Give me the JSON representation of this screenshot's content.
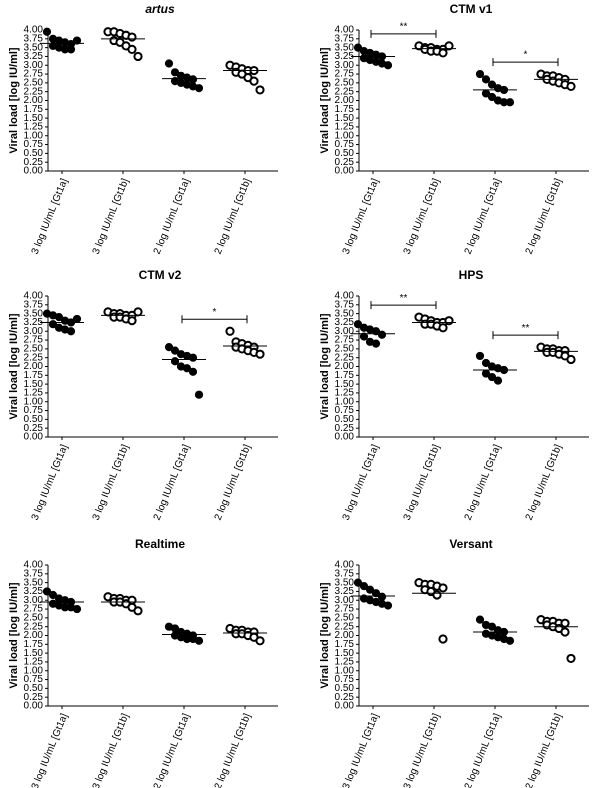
{
  "chart_data": [
    {
      "type": "dot",
      "title": "artus",
      "title_italic": true,
      "ylabel": "Viral load [log IU/ml]",
      "color": "#000000",
      "categories": [
        "3 log IU/mL [Gt1a]",
        "3 log IU/mL [Gt1b]",
        "2 log IU/mL [Gt1a]",
        "2 log IU/mL [Gt1b]"
      ],
      "groups": [
        {
          "marker": "filled",
          "values": [
            3.95,
            3.75,
            3.7,
            3.65,
            3.6,
            3.55,
            3.5,
            3.45,
            3.45,
            3.7
          ],
          "mean": 3.62
        },
        {
          "marker": "open",
          "values": [
            3.95,
            3.95,
            3.9,
            3.85,
            3.8,
            3.7,
            3.65,
            3.55,
            3.45,
            3.25
          ],
          "mean": 3.75
        },
        {
          "marker": "filled",
          "values": [
            3.05,
            2.8,
            2.7,
            2.65,
            2.6,
            2.55,
            2.5,
            2.45,
            2.4,
            2.35
          ],
          "mean": 2.62
        },
        {
          "marker": "open",
          "values": [
            3.0,
            2.95,
            2.9,
            2.85,
            2.85,
            2.8,
            2.75,
            2.65,
            2.55,
            2.3
          ],
          "mean": 2.85
        }
      ],
      "significance": [],
      "ylim": [
        0,
        4
      ],
      "yticks": [
        {
          "value": 0,
          "label": "0.00"
        },
        {
          "value": 0.25,
          "label": "0.25"
        },
        {
          "value": 0.5,
          "label": "0.50"
        },
        {
          "value": 0.75,
          "label": "0.75"
        },
        {
          "value": 1,
          "label": "1.00"
        },
        {
          "value": 1.25,
          "label": "1.25"
        },
        {
          "value": 1.5,
          "label": "1.50"
        },
        {
          "value": 1.75,
          "label": "1.75"
        },
        {
          "value": 2,
          "label": "2.00"
        },
        {
          "value": 2.25,
          "label": "2.25"
        },
        {
          "value": 2.5,
          "label": "2.50"
        },
        {
          "value": 2.75,
          "label": "2.75"
        },
        {
          "value": 3,
          "label": "3.00"
        },
        {
          "value": 3.25,
          "label": "3.25"
        },
        {
          "value": 3.5,
          "label": "3.50"
        },
        {
          "value": 3.75,
          "label": "3.75"
        },
        {
          "value": 4,
          "label": "4.00"
        }
      ]
    },
    {
      "type": "dot",
      "title": "CTM v1",
      "title_italic": false,
      "ylabel": "Viral load [log IU/ml]",
      "color": "#000000",
      "categories": [
        "3 log IU/mL [Gt1a]",
        "3 log IU/mL [Gt1b]",
        "2 log IU/mL [Gt1a]",
        "2 log IU/mL [Gt1b]"
      ],
      "groups": [
        {
          "marker": "filled",
          "values": [
            3.5,
            3.4,
            3.35,
            3.3,
            3.25,
            3.2,
            3.15,
            3.1,
            3.05,
            3.0
          ],
          "mean": 3.25
        },
        {
          "marker": "open",
          "values": [
            3.55,
            3.5,
            3.5,
            3.45,
            3.45,
            3.45,
            3.4,
            3.4,
            3.35,
            3.55
          ],
          "mean": 3.47
        },
        {
          "marker": "filled",
          "values": [
            2.75,
            2.6,
            2.45,
            2.35,
            2.3,
            2.2,
            2.1,
            2.0,
            1.95,
            1.95
          ],
          "mean": 2.3
        },
        {
          "marker": "open",
          "values": [
            2.75,
            2.7,
            2.7,
            2.65,
            2.6,
            2.6,
            2.55,
            2.5,
            2.45,
            2.4
          ],
          "mean": 2.6
        }
      ],
      "significance": [
        {
          "pair": [
            0,
            1
          ],
          "label": "**"
        },
        {
          "pair": [
            2,
            3
          ],
          "label": "*"
        }
      ],
      "ylim": [
        0,
        4
      ],
      "yticks": [
        {
          "value": 0,
          "label": "0.00"
        },
        {
          "value": 0.25,
          "label": "0.25"
        },
        {
          "value": 0.5,
          "label": "0.50"
        },
        {
          "value": 0.75,
          "label": "0.75"
        },
        {
          "value": 1,
          "label": "1.00"
        },
        {
          "value": 1.25,
          "label": "1.25"
        },
        {
          "value": 1.5,
          "label": "1.50"
        },
        {
          "value": 1.75,
          "label": "1.75"
        },
        {
          "value": 2,
          "label": "2.00"
        },
        {
          "value": 2.25,
          "label": "2.25"
        },
        {
          "value": 2.5,
          "label": "2.50"
        },
        {
          "value": 2.75,
          "label": "2.75"
        },
        {
          "value": 3,
          "label": "3.00"
        },
        {
          "value": 3.25,
          "label": "3.25"
        },
        {
          "value": 3.5,
          "label": "3.50"
        },
        {
          "value": 3.75,
          "label": "3.75"
        },
        {
          "value": 4,
          "label": "4.00"
        }
      ]
    },
    {
      "type": "dot",
      "title": "CTM v2",
      "title_italic": false,
      "ylabel": "Viral load [log IU/ml]",
      "color": "#000000",
      "categories": [
        "3 log IU/mL [Gt1a]",
        "3 log IU/mL [Gt1b]",
        "2 log IU/mL [Gt1a]",
        "2 log IU/mL [Gt1b]"
      ],
      "groups": [
        {
          "marker": "filled",
          "values": [
            3.5,
            3.45,
            3.4,
            3.3,
            3.25,
            3.2,
            3.1,
            3.05,
            3.0,
            3.35
          ],
          "mean": 3.25
        },
        {
          "marker": "open",
          "values": [
            3.55,
            3.5,
            3.5,
            3.45,
            3.45,
            3.4,
            3.4,
            3.35,
            3.3,
            3.55
          ],
          "mean": 3.45
        },
        {
          "marker": "filled",
          "values": [
            2.55,
            2.45,
            2.35,
            2.3,
            2.25,
            2.15,
            2.0,
            1.95,
            1.85,
            1.2
          ],
          "mean": 2.2
        },
        {
          "marker": "open",
          "values": [
            3.0,
            2.7,
            2.65,
            2.6,
            2.55,
            2.55,
            2.5,
            2.45,
            2.4,
            2.35
          ],
          "mean": 2.58
        }
      ],
      "significance": [
        {
          "pair": [
            2,
            3
          ],
          "label": "*"
        }
      ],
      "ylim": [
        0,
        4
      ],
      "yticks": [
        {
          "value": 0,
          "label": "0.00"
        },
        {
          "value": 0.25,
          "label": "0.25"
        },
        {
          "value": 0.5,
          "label": "0.50"
        },
        {
          "value": 0.75,
          "label": "0.75"
        },
        {
          "value": 1,
          "label": "1.00"
        },
        {
          "value": 1.25,
          "label": "1.25"
        },
        {
          "value": 1.5,
          "label": "1.50"
        },
        {
          "value": 1.75,
          "label": "1.75"
        },
        {
          "value": 2,
          "label": "2.00"
        },
        {
          "value": 2.25,
          "label": "2.25"
        },
        {
          "value": 2.5,
          "label": "2.50"
        },
        {
          "value": 2.75,
          "label": "2.75"
        },
        {
          "value": 3,
          "label": "3.00"
        },
        {
          "value": 3.25,
          "label": "3.25"
        },
        {
          "value": 3.5,
          "label": "3.50"
        },
        {
          "value": 3.75,
          "label": "3.75"
        },
        {
          "value": 4,
          "label": "4.00"
        }
      ]
    },
    {
      "type": "dot",
      "title": "HPS",
      "title_italic": false,
      "ylabel": "Viral load [log IU/ml]",
      "color": "#000000",
      "categories": [
        "3 log IU/mL [Gt1a]",
        "3 log IU/mL [Gt1b]",
        "2 log IU/mL [Gt1a]",
        "2 log IU/mL [Gt1b]"
      ],
      "groups": [
        {
          "marker": "filled",
          "values": [
            3.2,
            3.1,
            3.05,
            3.0,
            2.9,
            2.85,
            2.7,
            2.65
          ],
          "mean": 2.93
        },
        {
          "marker": "open",
          "values": [
            3.4,
            3.35,
            3.3,
            3.25,
            3.25,
            3.2,
            3.2,
            3.15,
            3.1,
            3.3
          ],
          "mean": 3.25
        },
        {
          "marker": "filled",
          "values": [
            2.3,
            2.1,
            2.0,
            1.95,
            1.9,
            1.8,
            1.7,
            1.6
          ],
          "mean": 1.9
        },
        {
          "marker": "open",
          "values": [
            2.55,
            2.5,
            2.5,
            2.45,
            2.45,
            2.4,
            2.4,
            2.35,
            2.3,
            2.2
          ],
          "mean": 2.43
        }
      ],
      "significance": [
        {
          "pair": [
            0,
            1
          ],
          "label": "**"
        },
        {
          "pair": [
            2,
            3
          ],
          "label": "**"
        }
      ],
      "ylim": [
        0,
        4
      ],
      "yticks": [
        {
          "value": 0,
          "label": "0.00"
        },
        {
          "value": 0.25,
          "label": "0.25"
        },
        {
          "value": 0.5,
          "label": "0.50"
        },
        {
          "value": 0.75,
          "label": "0.75"
        },
        {
          "value": 1,
          "label": "1.00"
        },
        {
          "value": 1.25,
          "label": "1.25"
        },
        {
          "value": 1.5,
          "label": "1.50"
        },
        {
          "value": 1.75,
          "label": "1.75"
        },
        {
          "value": 2,
          "label": "2.00"
        },
        {
          "value": 2.25,
          "label": "2.25"
        },
        {
          "value": 2.5,
          "label": "2.50"
        },
        {
          "value": 2.75,
          "label": "2.75"
        },
        {
          "value": 3,
          "label": "3.00"
        },
        {
          "value": 3.25,
          "label": "3.25"
        },
        {
          "value": 3.5,
          "label": "3.50"
        },
        {
          "value": 3.75,
          "label": "3.75"
        },
        {
          "value": 4,
          "label": "4.00"
        }
      ]
    },
    {
      "type": "dot",
      "title": "Realtime",
      "title_italic": false,
      "ylabel": "Viral load [log IU/ml]",
      "color": "#000000",
      "categories": [
        "3 log IU/mL [Gt1a]",
        "3 log IU/mL [Gt1b]",
        "2 log IU/mL [Gt1a]",
        "2 log IU/mL [Gt1b]"
      ],
      "groups": [
        {
          "marker": "filled",
          "values": [
            3.25,
            3.15,
            3.05,
            3.0,
            2.95,
            2.9,
            2.85,
            2.8,
            2.8,
            2.75
          ],
          "mean": 2.95
        },
        {
          "marker": "open",
          "values": [
            3.1,
            3.05,
            3.05,
            3.0,
            3.0,
            2.95,
            2.95,
            2.9,
            2.8,
            2.7
          ],
          "mean": 2.95
        },
        {
          "marker": "filled",
          "values": [
            2.25,
            2.2,
            2.1,
            2.05,
            2.0,
            2.0,
            1.95,
            1.9,
            1.9,
            1.85
          ],
          "mean": 2.03
        },
        {
          "marker": "open",
          "values": [
            2.2,
            2.15,
            2.15,
            2.1,
            2.1,
            2.05,
            2.05,
            2.0,
            1.95,
            1.85
          ],
          "mean": 2.07
        }
      ],
      "significance": [],
      "ylim": [
        0,
        4
      ],
      "yticks": [
        {
          "value": 0,
          "label": "0.00"
        },
        {
          "value": 0.25,
          "label": "0.25"
        },
        {
          "value": 0.5,
          "label": "0.50"
        },
        {
          "value": 0.75,
          "label": "0.75"
        },
        {
          "value": 1,
          "label": "1.00"
        },
        {
          "value": 1.25,
          "label": "1.25"
        },
        {
          "value": 1.5,
          "label": "1.50"
        },
        {
          "value": 1.75,
          "label": "1.75"
        },
        {
          "value": 2,
          "label": "2.00"
        },
        {
          "value": 2.25,
          "label": "2.25"
        },
        {
          "value": 2.5,
          "label": "2.50"
        },
        {
          "value": 2.75,
          "label": "2.75"
        },
        {
          "value": 3,
          "label": "3.00"
        },
        {
          "value": 3.25,
          "label": "3.25"
        },
        {
          "value": 3.5,
          "label": "3.50"
        },
        {
          "value": 3.75,
          "label": "3.75"
        },
        {
          "value": 4,
          "label": "4.00"
        }
      ]
    },
    {
      "type": "dot",
      "title": "Versant",
      "title_italic": false,
      "ylabel": "Viral load [log IU/ml]",
      "color": "#000000",
      "categories": [
        "3 log IU/mL [Gt1a]",
        "3 log IU/mL [Gt1b]",
        "2 log IU/mL [Gt1a]",
        "2 log IU/mL [Gt1b]"
      ],
      "groups": [
        {
          "marker": "filled",
          "values": [
            3.5,
            3.4,
            3.3,
            3.2,
            3.1,
            3.05,
            3.0,
            2.95,
            2.9,
            2.85
          ],
          "mean": 3.12
        },
        {
          "marker": "open",
          "values": [
            3.5,
            3.45,
            3.45,
            3.4,
            3.35,
            3.3,
            3.25,
            3.15,
            1.9
          ],
          "mean": 3.2
        },
        {
          "marker": "filled",
          "values": [
            2.45,
            2.3,
            2.25,
            2.15,
            2.1,
            2.05,
            2.0,
            1.95,
            1.9,
            1.85
          ],
          "mean": 2.1
        },
        {
          "marker": "open",
          "values": [
            2.45,
            2.4,
            2.4,
            2.35,
            2.35,
            2.3,
            2.25,
            2.2,
            2.1,
            1.35
          ],
          "mean": 2.25
        }
      ],
      "significance": [],
      "ylim": [
        0,
        4
      ],
      "yticks": [
        {
          "value": 0,
          "label": "0.00"
        },
        {
          "value": 0.25,
          "label": "0.25"
        },
        {
          "value": 0.5,
          "label": "0.50"
        },
        {
          "value": 0.75,
          "label": "0.75"
        },
        {
          "value": 1,
          "label": "1.00"
        },
        {
          "value": 1.25,
          "label": "1.25"
        },
        {
          "value": 1.5,
          "label": "1.50"
        },
        {
          "value": 1.75,
          "label": "1.75"
        },
        {
          "value": 2,
          "label": "2.00"
        },
        {
          "value": 2.25,
          "label": "2.25"
        },
        {
          "value": 2.5,
          "label": "2.50"
        },
        {
          "value": 2.75,
          "label": "2.75"
        },
        {
          "value": 3,
          "label": "3.00"
        },
        {
          "value": 3.25,
          "label": "3.25"
        },
        {
          "value": 3.5,
          "label": "3.50"
        },
        {
          "value": 3.75,
          "label": "3.75"
        },
        {
          "value": 4,
          "label": "4.00"
        }
      ]
    }
  ]
}
